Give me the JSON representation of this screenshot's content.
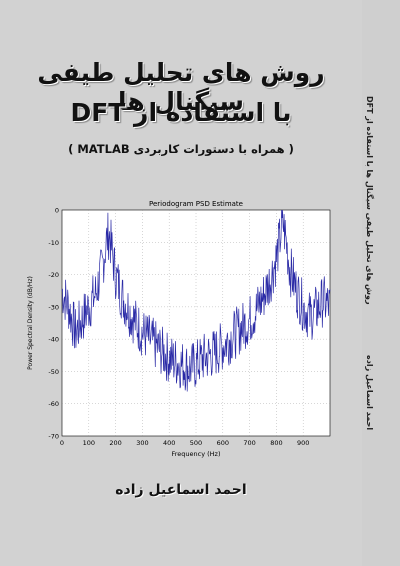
{
  "cover": {
    "title_line1": "روش های تحلیل طیفی سیگنال ها",
    "title_line2": "با استفاده از DFT",
    "subtitle": "( همراه با دستورات کاربردی MATLAB )",
    "author": "احمد اسماعیل زاده",
    "spine_title": "روش های تحلیل طیفی سیگنال ها با استفاده از DFT",
    "spine_author": "احمد اسماعیل زاده"
  },
  "chart_data": {
    "type": "line",
    "title": "Periodogram PSD Estimate",
    "xlabel": "Frequency (Hz)",
    "ylabel": "Power Spectral Density (dB/Hz)",
    "xlim": [
      0,
      1000
    ],
    "ylim": [
      -70,
      0
    ],
    "xticks": [
      0,
      100,
      200,
      300,
      400,
      500,
      600,
      700,
      800,
      900
    ],
    "yticks": [
      0,
      -10,
      -20,
      -30,
      -40,
      -50,
      -60,
      -70
    ],
    "grid": true,
    "line_color": "#2a2aa6",
    "series": [
      {
        "x": [
          0,
          25,
          50,
          75,
          100,
          125,
          150,
          165,
          175,
          185,
          200,
          225,
          250,
          275,
          300,
          325,
          350,
          375,
          400,
          425,
          450,
          475,
          500,
          525,
          550,
          575,
          600,
          625,
          650,
          675,
          700,
          725,
          750,
          775,
          800,
          815,
          825,
          835,
          850,
          875,
          900,
          925,
          950,
          975,
          1000
        ],
        "values": [
          -25,
          -30,
          -38,
          -34,
          -30,
          -26,
          -18,
          -10,
          -7,
          -12,
          -20,
          -27,
          -31,
          -35,
          -38,
          -40,
          -42,
          -44,
          -46,
          -47,
          -48,
          -49,
          -48,
          -46,
          -45,
          -44,
          -42,
          -40,
          -38,
          -36,
          -34,
          -31,
          -27,
          -22,
          -15,
          -8,
          -4,
          -9,
          -18,
          -25,
          -30,
          -33,
          -31,
          -28,
          -30
        ]
      }
    ]
  }
}
